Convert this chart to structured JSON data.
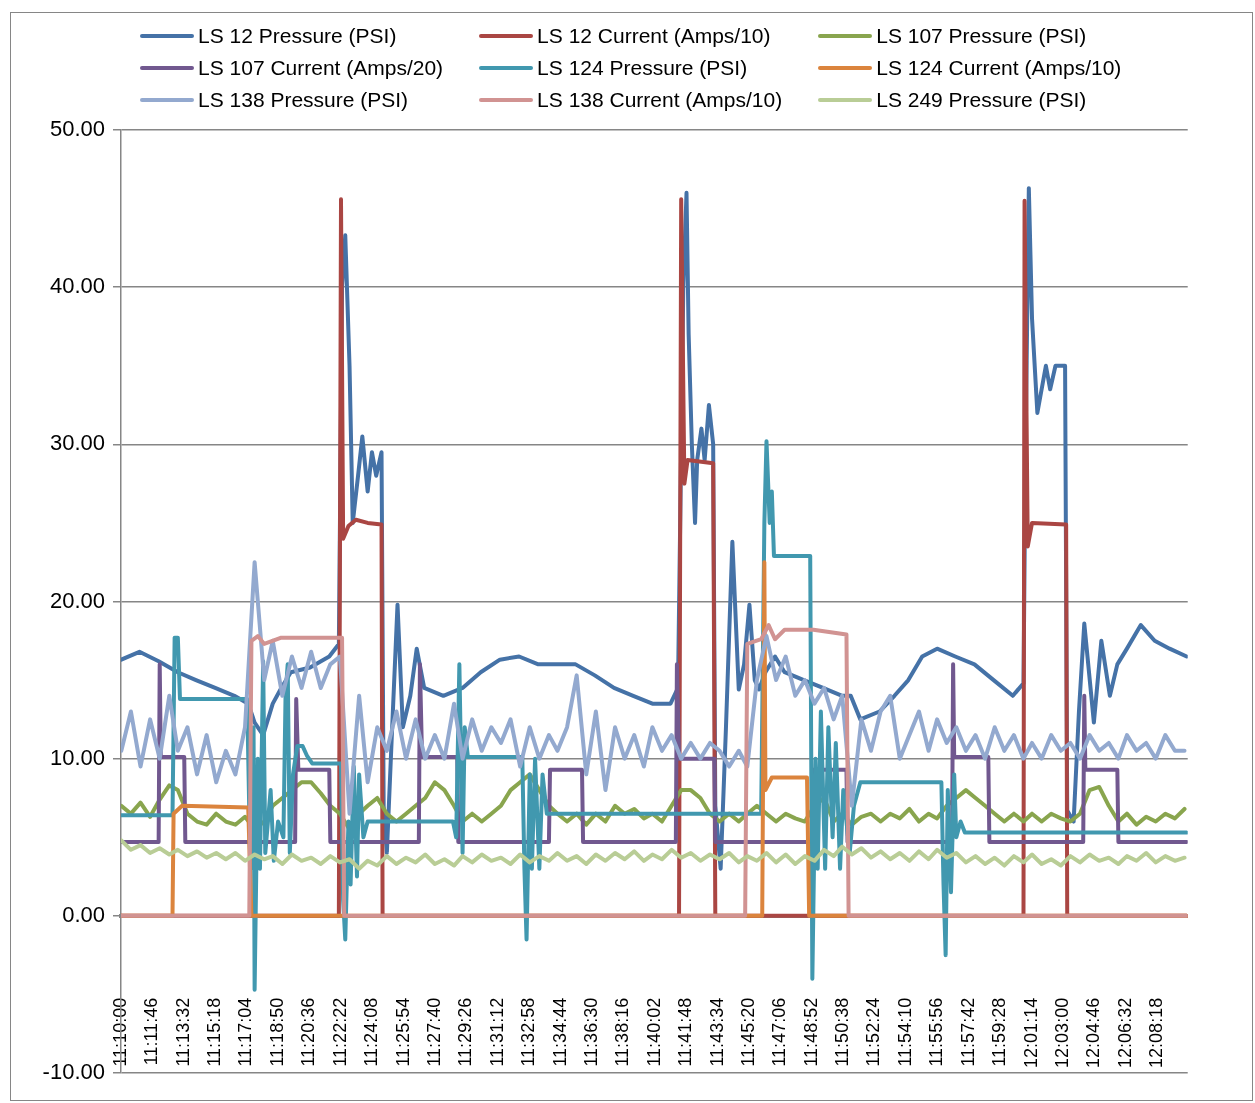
{
  "chart_data": {
    "type": "line",
    "legend": "top",
    "grid": "y",
    "marker": "none",
    "line_style": "solid",
    "xlim": [
      11.1667,
      12.167
    ],
    "ylim": [
      -10,
      50
    ],
    "yticks": [
      {
        "value": -10,
        "label": "-10.00"
      },
      {
        "value": 0,
        "label": "0.00"
      },
      {
        "value": 10,
        "label": "10.00"
      },
      {
        "value": 20,
        "label": "20.00"
      },
      {
        "value": 30,
        "label": "30.00"
      },
      {
        "value": 40,
        "label": "40.00"
      },
      {
        "value": 50,
        "label": "50.00"
      }
    ],
    "xticks": [
      {
        "value": 11.1667,
        "label": "11:10:00"
      },
      {
        "value": 11.1961,
        "label": "11:11:46"
      },
      {
        "value": 11.2256,
        "label": "11:13:32"
      },
      {
        "value": 11.255,
        "label": "11:15:18"
      },
      {
        "value": 11.2844,
        "label": "11:17:04"
      },
      {
        "value": 11.3139,
        "label": "11:18:50"
      },
      {
        "value": 11.3433,
        "label": "11:20:36"
      },
      {
        "value": 11.3728,
        "label": "11:22:22"
      },
      {
        "value": 11.4022,
        "label": "11:24:08"
      },
      {
        "value": 11.4317,
        "label": "11:25:54"
      },
      {
        "value": 11.4611,
        "label": "11:27:40"
      },
      {
        "value": 11.4906,
        "label": "11:29:26"
      },
      {
        "value": 11.52,
        "label": "11:31:12"
      },
      {
        "value": 11.5494,
        "label": "11:32:58"
      },
      {
        "value": 11.5789,
        "label": "11:34:44"
      },
      {
        "value": 11.6083,
        "label": "11:36:30"
      },
      {
        "value": 11.6378,
        "label": "11:38:16"
      },
      {
        "value": 11.6672,
        "label": "11:40:02"
      },
      {
        "value": 11.6967,
        "label": "11:41:48"
      },
      {
        "value": 11.7261,
        "label": "11:43:34"
      },
      {
        "value": 11.7556,
        "label": "11:45:20"
      },
      {
        "value": 11.785,
        "label": "11:47:06"
      },
      {
        "value": 11.8144,
        "label": "11:48:52"
      },
      {
        "value": 11.8439,
        "label": "11:50:38"
      },
      {
        "value": 11.8733,
        "label": "11:52:24"
      },
      {
        "value": 11.9028,
        "label": "11:54:10"
      },
      {
        "value": 11.9322,
        "label": "11:55:56"
      },
      {
        "value": 11.9617,
        "label": "11:57:42"
      },
      {
        "value": 11.9911,
        "label": "11:59:28"
      },
      {
        "value": 12.0206,
        "label": "12:01:14"
      },
      {
        "value": 12.05,
        "label": "12:03:00"
      },
      {
        "value": 12.0794,
        "label": "12:04:46"
      },
      {
        "value": 12.1089,
        "label": "12:06:32"
      },
      {
        "value": 12.1383,
        "label": "12:08:18"
      }
    ],
    "x": [
      11.167,
      11.176,
      11.185,
      11.194,
      11.203,
      11.212,
      11.22,
      11.229,
      11.238,
      11.247,
      11.256,
      11.265,
      11.274,
      11.283,
      11.292,
      11.301,
      11.309,
      11.318,
      11.327,
      11.336,
      11.345,
      11.354,
      11.363,
      11.372,
      11.381,
      11.39,
      11.398,
      11.407,
      11.416,
      11.425,
      11.434,
      11.443,
      11.452,
      11.461,
      11.47,
      11.479,
      11.487,
      11.496,
      11.505,
      11.514,
      11.523,
      11.532,
      11.541,
      11.55,
      11.559,
      11.568,
      11.576,
      11.585,
      11.594,
      11.603,
      11.612,
      11.621,
      11.63,
      11.639,
      11.648,
      11.657,
      11.665,
      11.674,
      11.683,
      11.692,
      11.701,
      11.71,
      11.719,
      11.728,
      11.737,
      11.746,
      11.754,
      11.763,
      11.772,
      11.781,
      11.79,
      11.799,
      11.808,
      11.817,
      11.826,
      11.835,
      11.843,
      11.852,
      11.861,
      11.87,
      11.879,
      11.888,
      11.897,
      11.906,
      11.915,
      11.924,
      11.932,
      11.941,
      11.95,
      11.959,
      11.968,
      11.977,
      11.986,
      11.995,
      12.004,
      12.013,
      12.021,
      12.03,
      12.039,
      12.048,
      12.057,
      12.066,
      12.075,
      12.084,
      12.093,
      12.102,
      12.11,
      12.119,
      12.128,
      12.137,
      12.146,
      12.155,
      12.164
    ],
    "series": [
      {
        "name": "LS 12 Pressure (PSI)",
        "color": "#4572a7",
        "x": [
          11.167,
          11.184,
          11.202,
          11.22,
          11.237,
          11.255,
          11.273,
          11.286,
          11.292,
          11.3,
          11.309,
          11.317,
          11.326,
          11.344,
          11.362,
          11.371,
          11.374,
          11.377,
          11.381,
          11.384,
          11.389,
          11.393,
          11.398,
          11.402,
          11.406,
          11.411,
          11.413,
          11.416,
          11.421,
          11.426,
          11.431,
          11.438,
          11.444,
          11.451,
          11.469,
          11.487,
          11.504,
          11.522,
          11.54,
          11.558,
          11.576,
          11.593,
          11.611,
          11.629,
          11.647,
          11.665,
          11.682,
          11.689,
          11.694,
          11.697,
          11.699,
          11.702,
          11.705,
          11.707,
          11.711,
          11.714,
          11.718,
          11.722,
          11.724,
          11.729,
          11.734,
          11.74,
          11.746,
          11.751,
          11.756,
          11.761,
          11.765,
          11.771,
          11.78,
          11.789,
          11.807,
          11.825,
          11.843,
          11.851,
          11.86,
          11.878,
          11.892,
          11.905,
          11.918,
          11.932,
          11.949,
          11.967,
          11.985,
          12.003,
          12.013,
          12.015,
          12.018,
          12.021,
          12.026,
          12.034,
          12.038,
          12.043,
          12.052,
          12.054,
          12.06,
          12.065,
          12.07,
          12.079,
          12.086,
          12.094,
          12.101,
          12.11,
          12.123,
          12.136,
          12.15,
          12.166
        ],
        "values": [
          16.3,
          16.8,
          16.2,
          15.5,
          15.0,
          14.5,
          14.0,
          13.5,
          12.3,
          11.5,
          13.5,
          14.5,
          15.5,
          15.8,
          16.5,
          17.3,
          40,
          43.3,
          35,
          25,
          28,
          30.5,
          27,
          29.5,
          28,
          29.5,
          7,
          4,
          12,
          19.8,
          12,
          14,
          17,
          14.5,
          14,
          14.5,
          15.5,
          16.3,
          16.5,
          16,
          16,
          16,
          15.3,
          14.5,
          14,
          13.5,
          13.5,
          14.5,
          40,
          46,
          37,
          30,
          25,
          29,
          31,
          29,
          32.5,
          30,
          7,
          3,
          12,
          23.8,
          14.4,
          16,
          19.8,
          15,
          14.4,
          15.5,
          16.5,
          15.5,
          15,
          14.5,
          14,
          14,
          12.5,
          13,
          14,
          15,
          16.5,
          17,
          16.5,
          16,
          15,
          14,
          14.8,
          30,
          46.3,
          38,
          32,
          35,
          33.5,
          35,
          35,
          6.7,
          6,
          13,
          18.6,
          12.3,
          17.5,
          14,
          16,
          17,
          18.5,
          17.5,
          17,
          16.5
        ]
      },
      {
        "name": "LS 12 Current (Amps/10)",
        "color": "#aa4643",
        "x": [
          11.167,
          11.371,
          11.373,
          11.375,
          11.38,
          11.387,
          11.398,
          11.411,
          11.412,
          11.69,
          11.692,
          11.695,
          11.698,
          11.722,
          11.724,
          12.013,
          12.014,
          12.017,
          12.021,
          12.053,
          12.054,
          12.166
        ],
        "values": [
          0,
          0,
          45.6,
          24,
          24.8,
          25.2,
          25.0,
          24.9,
          0,
          0,
          45.6,
          27.5,
          29,
          28.8,
          0,
          0,
          45.5,
          23.5,
          25,
          24.9,
          0,
          0
        ]
      },
      {
        "name": "LS 107 Pressure (PSI)",
        "color": "#89a54e",
        "values": [
          7,
          6.5,
          7.2,
          6.3,
          7.4,
          8.3,
          8,
          6.5,
          6,
          5.8,
          6.5,
          6,
          5.8,
          6.3,
          5.5,
          6,
          7,
          7.5,
          8,
          8.5,
          8.5,
          7.8,
          7,
          6.5,
          5.5,
          6.5,
          7,
          7.5,
          6.5,
          6,
          6.5,
          7,
          7.5,
          8.5,
          8,
          7,
          6,
          6.5,
          6,
          6.5,
          7,
          8,
          8.5,
          9,
          8,
          7,
          6.5,
          6,
          6.5,
          5.8,
          6.5,
          6,
          7,
          6.5,
          6.8,
          6.2,
          6.5,
          6,
          7,
          8,
          8,
          7.5,
          6.5,
          6,
          6.5,
          6,
          6.5,
          7,
          6.5,
          6,
          6.5,
          6.2,
          6,
          7,
          7.5,
          6,
          6.5,
          5.8,
          6.3,
          6.5,
          6,
          6.5,
          6.2,
          6.8,
          6,
          6.5,
          6.2,
          7,
          7.5,
          8,
          7.5,
          7,
          6.5,
          6,
          6.5,
          6,
          6.5,
          6,
          6.5,
          6.2,
          6,
          6.5,
          8,
          8.2,
          7,
          6,
          6.5,
          5.8,
          6.3,
          6,
          6.5,
          6.2,
          6.8
        ]
      },
      {
        "name": "LS 107 Current (Amps/20)",
        "color": "#71588f",
        "x": [
          11.167,
          11.202,
          11.203,
          11.204,
          11.226,
          11.227,
          11.33,
          11.331,
          11.333,
          11.362,
          11.363,
          11.446,
          11.447,
          11.449,
          11.482,
          11.483,
          11.568,
          11.569,
          11.599,
          11.6,
          11.687,
          11.688,
          11.69,
          11.723,
          11.724,
          11.815,
          11.816,
          11.847,
          11.848,
          11.946,
          11.947,
          11.948,
          11.98,
          11.981,
          12.069,
          12.07,
          12.071,
          12.101,
          12.102,
          12.166
        ],
        "values": [
          4.7,
          4.7,
          16,
          10.1,
          10.1,
          4.7,
          4.7,
          13.8,
          9.3,
          9.3,
          4.7,
          4.7,
          16,
          10.1,
          10.1,
          4.7,
          4.7,
          9.3,
          9.3,
          4.7,
          4.7,
          16,
          10,
          10,
          4.7,
          4.7,
          9.3,
          9.3,
          4.7,
          4.7,
          16,
          10.1,
          10.1,
          4.7,
          4.7,
          14,
          9.3,
          9.3,
          4.7,
          4.7
        ]
      },
      {
        "name": "LS 124 Pressure (PSI)",
        "color": "#4198af",
        "x": [
          11.167,
          11.215,
          11.217,
          11.22,
          11.222,
          11.285,
          11.288,
          11.291,
          11.292,
          11.295,
          11.297,
          11.3,
          11.302,
          11.307,
          11.31,
          11.314,
          11.319,
          11.321,
          11.323,
          11.325,
          11.328,
          11.332,
          11.337,
          11.341,
          11.346,
          11.373,
          11.375,
          11.377,
          11.38,
          11.382,
          11.385,
          11.388,
          11.39,
          11.394,
          11.398,
          11.478,
          11.481,
          11.484,
          11.487,
          11.489,
          11.492,
          11.543,
          11.545,
          11.547,
          11.55,
          11.552,
          11.555,
          11.559,
          11.562,
          11.566,
          11.767,
          11.77,
          11.772,
          11.775,
          11.777,
          11.779,
          11.813,
          11.815,
          11.818,
          11.82,
          11.823,
          11.827,
          11.83,
          11.834,
          11.837,
          11.841,
          11.844,
          11.85,
          11.854,
          11.86,
          11.936,
          11.938,
          11.94,
          11.942,
          11.945,
          11.948,
          11.95,
          11.954,
          11.958,
          12.166
        ],
        "values": [
          6.4,
          6.4,
          17.7,
          17.7,
          13.8,
          13.8,
          3,
          12,
          -4.7,
          10,
          3,
          16.2,
          4,
          8,
          3.5,
          6,
          5,
          14,
          16,
          4,
          9,
          10.8,
          10.8,
          10.2,
          9.7,
          9.7,
          1,
          -1.5,
          6,
          2,
          9.5,
          2.5,
          9,
          5,
          6.0,
          6.0,
          5,
          16,
          4,
          12,
          10.1,
          10.1,
          3,
          -1.5,
          9,
          3,
          10,
          3,
          9,
          6.5,
          6.5,
          25,
          30.2,
          25,
          27,
          22.9,
          22.9,
          -4,
          10,
          3,
          13,
          3,
          12,
          5,
          11,
          3,
          8,
          4,
          7,
          8.5,
          8.5,
          2,
          -2.5,
          8,
          1.5,
          9,
          5,
          6,
          5.3,
          5.3
        ]
      },
      {
        "name": "LS 124 Current (Amps/10)",
        "color": "#db843d",
        "x": [
          11.167,
          11.215,
          11.216,
          11.224,
          11.286,
          11.289,
          11.768,
          11.77,
          11.771,
          11.777,
          11.81,
          11.812,
          12.166
        ],
        "values": [
          0,
          0,
          6.5,
          7.0,
          6.9,
          0,
          0,
          22.5,
          8.0,
          8.8,
          8.8,
          0,
          0
        ]
      },
      {
        "name": "LS 138 Pressure (PSI)",
        "color": "#93a9cf",
        "values": [
          10.5,
          13,
          9.5,
          12.5,
          10,
          14,
          10.5,
          12,
          9,
          11.5,
          8.5,
          10.5,
          9,
          12,
          22.5,
          15,
          17.5,
          14,
          16.5,
          14.5,
          16.8,
          14.5,
          16,
          16.5,
          6.5,
          14,
          8.5,
          12,
          10.5,
          13,
          10,
          12.5,
          10,
          11.5,
          10,
          13.5,
          10,
          12.5,
          10.5,
          12,
          11,
          12.5,
          9.5,
          12,
          10,
          11.5,
          10.5,
          12,
          15.3,
          9,
          13,
          8,
          12,
          10,
          11.5,
          9.5,
          12,
          10.5,
          11.5,
          10,
          11,
          10,
          11,
          10.5,
          9.5,
          10.5,
          9.5,
          15,
          17.8,
          15,
          16.5,
          14,
          15,
          13.5,
          14.5,
          12.5,
          14,
          7,
          12.5,
          10.5,
          13,
          14,
          10,
          11.5,
          13,
          10.5,
          12.5,
          11,
          12,
          10.5,
          11.5,
          10,
          12,
          10.5,
          11.5,
          10,
          11,
          10,
          11.5,
          10.5,
          11,
          10,
          11.5,
          10.5,
          11,
          10,
          11.5,
          10.5,
          11,
          10,
          11.5,
          10.5,
          10.5
        ]
      },
      {
        "name": "LS 138 Current (Amps/10)",
        "color": "#d19392",
        "x": [
          11.167,
          11.287,
          11.289,
          11.295,
          11.301,
          11.317,
          11.374,
          11.376,
          11.752,
          11.754,
          11.767,
          11.774,
          11.78,
          11.789,
          11.816,
          11.847,
          11.849,
          12.166
        ],
        "values": [
          0,
          0,
          17.5,
          17.8,
          17.3,
          17.7,
          17.7,
          0,
          0,
          17.3,
          17.6,
          18.5,
          17.6,
          18.2,
          18.2,
          17.9,
          0,
          0
        ]
      },
      {
        "name": "LS 249 Pressure (PSI)",
        "color": "#b9cd96",
        "values": [
          4.8,
          4.2,
          4.5,
          4.0,
          4.3,
          3.9,
          4.2,
          3.8,
          4.1,
          3.7,
          4.0,
          3.6,
          4.0,
          3.5,
          3.9,
          3.6,
          3.8,
          3.3,
          3.9,
          3.5,
          3.7,
          3.3,
          3.8,
          3.4,
          3.6,
          3.0,
          3.5,
          3.2,
          3.8,
          3.3,
          3.7,
          3.4,
          3.9,
          3.3,
          3.6,
          3.2,
          3.8,
          3.4,
          3.9,
          3.5,
          3.7,
          3.3,
          3.9,
          3.4,
          3.8,
          3.5,
          4.0,
          3.5,
          3.8,
          3.3,
          3.9,
          3.5,
          4.0,
          3.6,
          4.1,
          3.5,
          3.9,
          3.6,
          4.2,
          3.7,
          4.0,
          3.5,
          3.9,
          3.6,
          4.0,
          3.4,
          3.8,
          3.5,
          4.0,
          3.4,
          3.9,
          3.3,
          3.8,
          3.5,
          4.2,
          3.8,
          4.4,
          3.9,
          4.3,
          3.7,
          4.1,
          3.6,
          4.0,
          3.5,
          4.1,
          3.6,
          4.2,
          3.7,
          4.0,
          3.4,
          3.8,
          3.3,
          3.7,
          3.2,
          3.8,
          3.4,
          3.9,
          3.3,
          3.6,
          3.2,
          3.8,
          3.4,
          3.9,
          3.5,
          3.7,
          3.3,
          3.8,
          3.5,
          4.0,
          3.4,
          3.8,
          3.5,
          3.7
        ]
      }
    ]
  }
}
